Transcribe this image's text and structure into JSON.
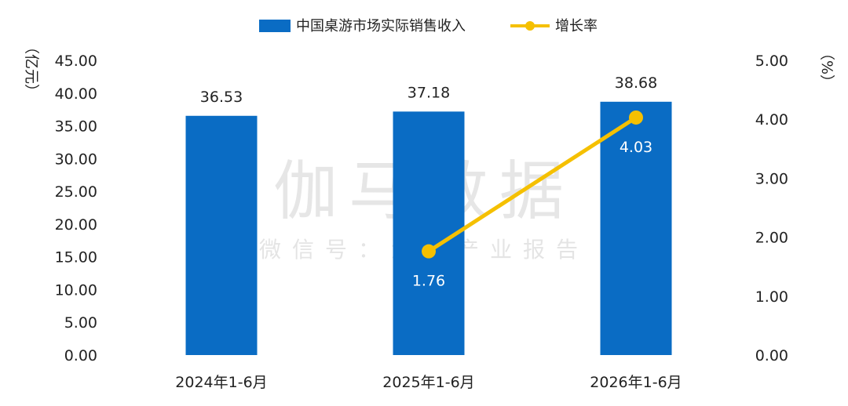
{
  "chart_data": {
    "type": "bar",
    "categories": [
      "2024年1-6月",
      "2025年1-6月",
      "2026年1-6月"
    ],
    "series": [
      {
        "name": "中国桌游市场实际销售收入",
        "type": "bar",
        "axis": "left",
        "values": [
          36.53,
          37.18,
          38.68
        ],
        "labels": [
          "36.53",
          "37.18",
          "38.68"
        ]
      },
      {
        "name": "增长率",
        "type": "line",
        "axis": "right",
        "values": [
          null,
          1.76,
          4.03
        ],
        "labels": [
          "",
          "1.76",
          "4.03"
        ]
      }
    ],
    "y_left": {
      "unit_label": "（亿元）",
      "min": 0,
      "max": 45,
      "ticks": [
        "0.00",
        "5.00",
        "10.00",
        "15.00",
        "20.00",
        "25.00",
        "30.00",
        "35.00",
        "40.00",
        "45.00"
      ]
    },
    "y_right": {
      "unit_label": "（%）",
      "min": 0,
      "max": 5,
      "ticks": [
        "0.00",
        "1.00",
        "2.00",
        "3.00",
        "4.00",
        "5.00"
      ]
    },
    "legend_position": "top-center",
    "grid": false,
    "colors": {
      "bar": "#0a6cc4",
      "line": "#f5c000",
      "watermark": "#d3d3d3"
    }
  },
  "watermark": {
    "main": "伽马数据",
    "sub": "微信号：游戏产业报告"
  }
}
